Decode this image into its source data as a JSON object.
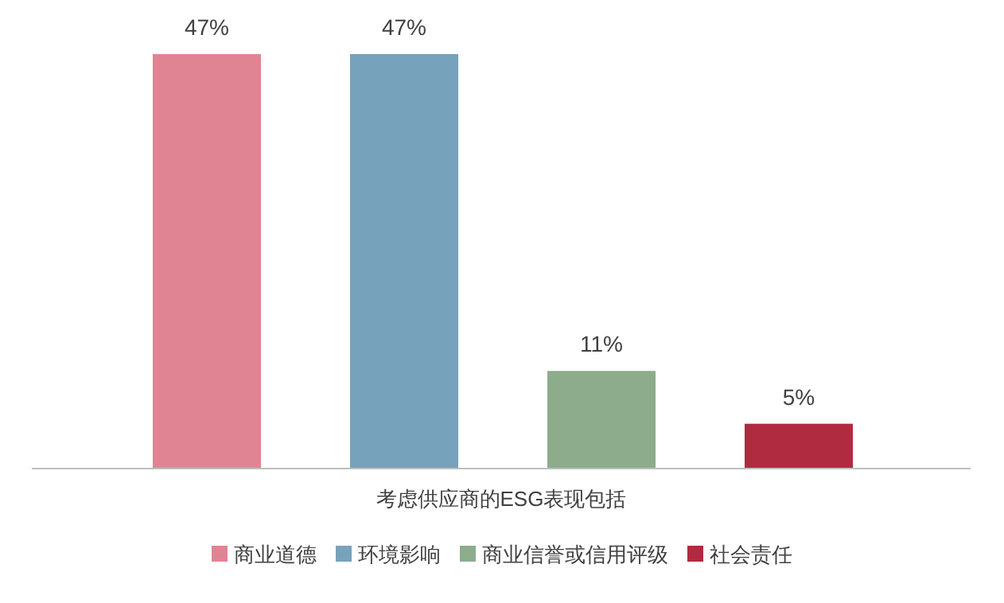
{
  "chart_data": {
    "type": "bar",
    "xlabel": "考虑供应商的ESG表现包括",
    "categories": [
      "商业道德",
      "环境影响",
      "商业信誉或信用评级",
      "社会责任"
    ],
    "values": [
      47,
      47,
      11,
      5
    ],
    "value_labels": [
      "47%",
      "47%",
      "11%",
      "5%"
    ],
    "colors": [
      "#e08493",
      "#76a2bb",
      "#8dac8b",
      "#b02a40"
    ],
    "tick_labels": false
  }
}
